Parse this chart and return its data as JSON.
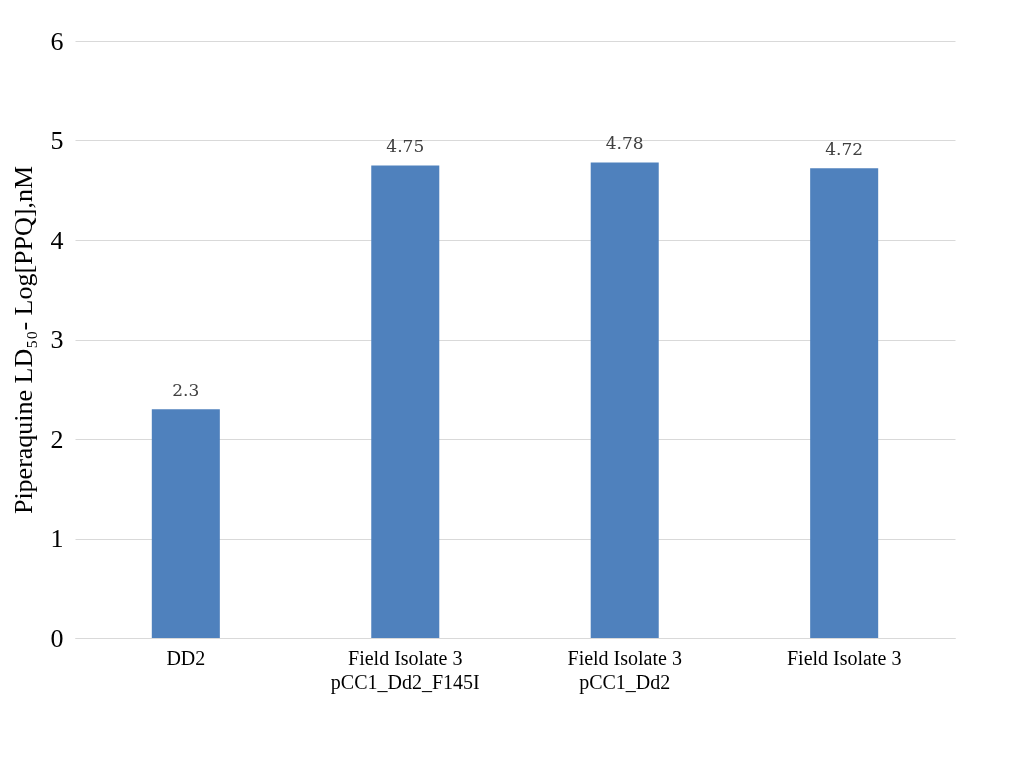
{
  "chart_data": {
    "type": "bar",
    "ylabel": "Piperaquine LD₅₀- Log[PPQ],nM",
    "categories": [
      "DD2",
      "Field Isolate 3\npCC1_Dd2_F145I",
      "Field Isolate 3\npCC1_Dd2",
      "Field Isolate 3"
    ],
    "values": [
      2.3,
      4.75,
      4.78,
      4.72
    ],
    "color": "#4f81bd",
    "ylim": [
      0,
      6
    ],
    "yticks": [
      0,
      1,
      2,
      3,
      4,
      5,
      6
    ],
    "grid": "y",
    "data_labels": true
  }
}
